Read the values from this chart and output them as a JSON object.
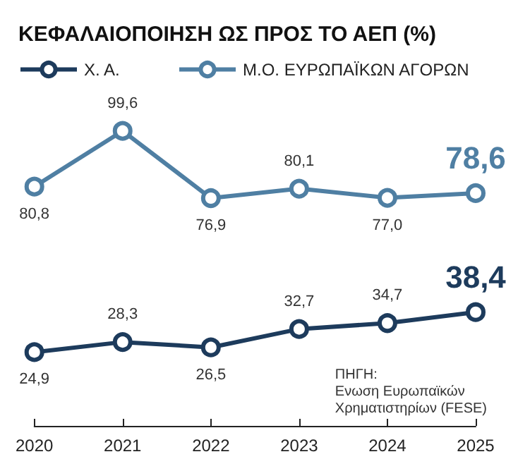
{
  "chart_data": {
    "type": "line",
    "title": "ΚΕΦΑΛΑΙΟΠΟΙΗΣΗ ΩΣ ΠΡΟΣ ΤΟ ΑΕΠ (%)",
    "categories": [
      "2020",
      "2021",
      "2022",
      "2023",
      "2024",
      "2025"
    ],
    "series": [
      {
        "name": "Χ. Α.",
        "color": "#1d3b5c",
        "values": [
          24.9,
          28.3,
          26.5,
          32.7,
          34.7,
          38.4
        ],
        "value_labels": [
          "24,9",
          "28,3",
          "26,5",
          "32,7",
          "34,7",
          "38,4"
        ]
      },
      {
        "name": "Μ.Ο. ΕΥΡΩΠΑΪΚΩΝ ΑΓΟΡΩΝ",
        "color": "#4f7fa3",
        "values": [
          80.8,
          99.6,
          76.9,
          80.1,
          77.0,
          78.6
        ],
        "value_labels": [
          "80,8",
          "99,6",
          "76,9",
          "80,1",
          "77,0",
          "78,6"
        ]
      }
    ],
    "tick_labels": "x",
    "grid": false,
    "legend": "top left",
    "marker": "circle",
    "line_style": "solid",
    "annotations": [
      "ΠΗΓΗ:\nΕνωση Ευρωπαϊκών\nΧρηματιστηρίων (FESE)"
    ]
  }
}
